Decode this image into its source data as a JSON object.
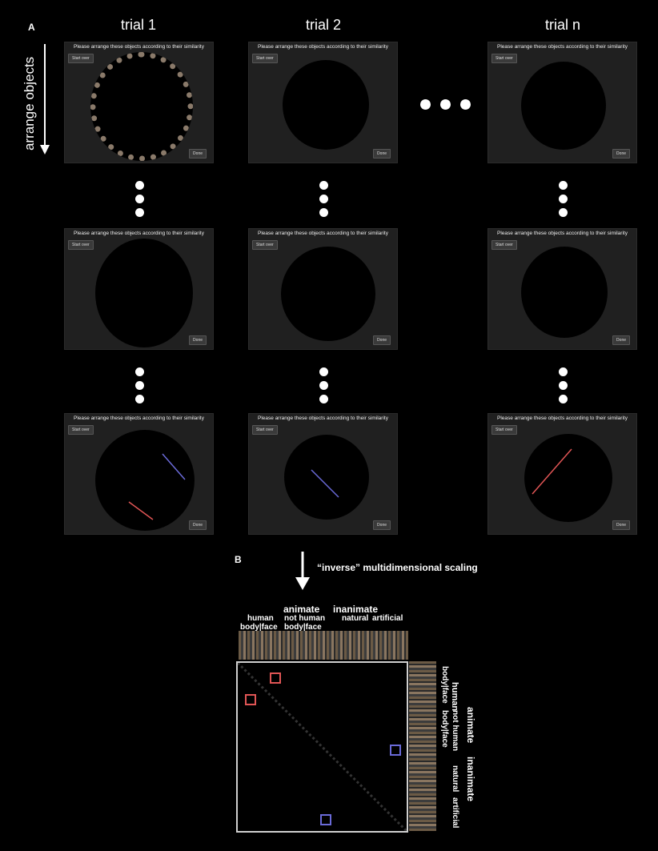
{
  "panels": {
    "a": "A",
    "b": "B"
  },
  "trials": [
    "trial 1",
    "trial 2",
    "trial n"
  ],
  "side_label": "arrange objects",
  "ui": {
    "instruction": "Please arrange these objects according to their similarity",
    "start_over": "Start over",
    "done": "Done"
  },
  "mds_label": "“inverse” multidimensional scaling",
  "matrix_headers": {
    "animate": "animate",
    "inanimate": "inanimate",
    "human": "human",
    "not_human": "not human",
    "body_face_1": "body|face",
    "body_face_2": "body|face",
    "natural": "natural",
    "artificial": "artificial"
  },
  "colors": {
    "red": "#e05555",
    "blue": "#6a6ad8",
    "white": "#ffffff"
  }
}
